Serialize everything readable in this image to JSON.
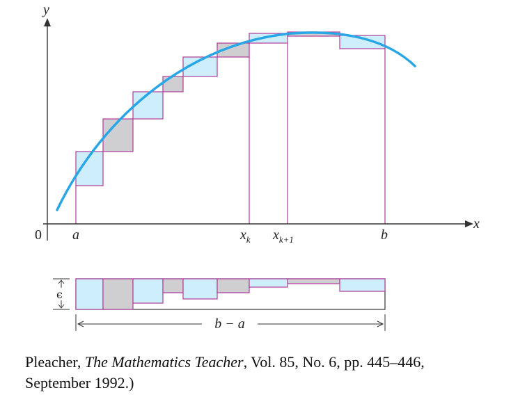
{
  "colors": {
    "curve": "#29a6e6",
    "under_fill": "#cdeefa",
    "over_fill": "#cfcfd2",
    "rect_stroke": "#b03a9a",
    "axis": "#333333",
    "guide": "#b03a9a"
  },
  "labels": {
    "y_axis": "y",
    "x_axis": "x",
    "origin": "0",
    "a": "a",
    "xk_base": "x",
    "xk_sub": "k",
    "xk1_base": "x",
    "xk1_sub": "k+1",
    "b": "b",
    "epsilon": "ϵ",
    "width": "b − a"
  },
  "caption": {
    "line1_prefix": "Pleacher, ",
    "journal": "The Mathematics Teacher",
    "line1_suffix": ", Vol. 85, No. 6, pp. 445–446,",
    "line2": "September 1992.)"
  }
}
